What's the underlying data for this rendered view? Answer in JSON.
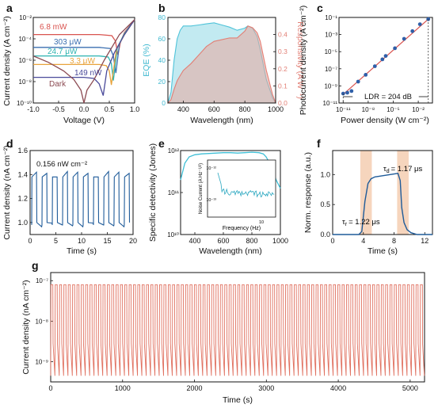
{
  "figure": {
    "panel_labels": [
      "a",
      "b",
      "c",
      "d",
      "e",
      "f",
      "g"
    ]
  },
  "chart_data": [
    {
      "panel": "a",
      "type": "line",
      "xlabel": "Voltage (V)",
      "ylabel": "Current density (A cm⁻²)",
      "xlim": [
        -1.0,
        1.0
      ],
      "ylim_log10": [
        -10,
        -2
      ],
      "yscale": "log",
      "xticks": [
        "-1.0",
        "-0.5",
        "0.0",
        "0.5",
        "1.0"
      ],
      "yticks": [
        "10⁻¹⁰",
        "10⁻⁸",
        "10⁻⁶",
        "10⁻⁴",
        "10⁻²"
      ],
      "series": [
        {
          "name": "6.8 mW",
          "color": "#d9534f",
          "x": [
            -1.0,
            -0.5,
            0.0,
            0.3,
            0.55,
            0.62,
            0.67,
            0.72,
            0.8,
            1.0
          ],
          "y": [
            -3.6,
            -3.6,
            -3.6,
            -3.6,
            -3.7,
            -4.2,
            -5.5,
            -4.3,
            -3.4,
            -2.2
          ]
        },
        {
          "name": "303 μW",
          "color": "#3b6fb0",
          "x": [
            -1.0,
            -0.5,
            0.0,
            0.3,
            0.52,
            0.58,
            0.63,
            0.7,
            0.8,
            1.0
          ],
          "y": [
            -4.8,
            -4.8,
            -4.8,
            -4.8,
            -4.9,
            -5.6,
            -7.2,
            -4.5,
            -3.5,
            -2.2
          ]
        },
        {
          "name": "24.7 μW",
          "color": "#2bb3b0",
          "x": [
            -1.0,
            -0.5,
            0.0,
            0.3,
            0.48,
            0.54,
            0.58,
            0.66,
            0.8,
            1.0
          ],
          "y": [
            -5.6,
            -5.6,
            -5.6,
            -5.6,
            -5.7,
            -6.3,
            -7.9,
            -4.8,
            -3.5,
            -2.2
          ]
        },
        {
          "name": "3.3 μW",
          "color": "#e8a33c",
          "x": [
            -1.0,
            -0.5,
            0.0,
            0.3,
            0.44,
            0.5,
            0.54,
            0.64,
            0.8,
            1.0
          ],
          "y": [
            -6.4,
            -6.4,
            -6.4,
            -6.4,
            -6.5,
            -7.0,
            -8.3,
            -5.0,
            -3.6,
            -2.2
          ]
        },
        {
          "name": "149 nW",
          "color": "#4a4a9a",
          "x": [
            -1.0,
            -0.5,
            0.0,
            0.2,
            0.3,
            0.38,
            0.45,
            0.6,
            0.8,
            1.0
          ],
          "y": [
            -7.6,
            -7.6,
            -7.6,
            -7.7,
            -8.2,
            -9.3,
            -7.0,
            -5.3,
            -3.6,
            -2.2
          ]
        },
        {
          "name": "Dark",
          "color": "#8b4a52",
          "x": [
            -1.0,
            -0.7,
            -0.4,
            -0.2,
            -0.06,
            0.0,
            0.06,
            0.2,
            0.4,
            0.7,
            1.0
          ],
          "y": [
            -5.6,
            -6.2,
            -7.0,
            -7.8,
            -8.8,
            -10.0,
            -8.8,
            -7.8,
            -6.0,
            -3.6,
            -2.2
          ]
        }
      ]
    },
    {
      "panel": "b",
      "type": "area",
      "xlabel": "Wavelength (nm)",
      "ylabel": "EQE (%)",
      "ylabel2": "Responsivity (A W⁻¹)",
      "xlim": [
        300,
        1000
      ],
      "ylim": [
        0,
        80
      ],
      "ylim2": [
        0,
        0.5
      ],
      "xticks": [
        "400",
        "600",
        "800",
        "1000"
      ],
      "yticks": [
        "0",
        "20",
        "40",
        "60",
        "80"
      ],
      "yticks2": [
        "0.0",
        "0.1",
        "0.2",
        "0.3",
        "0.4"
      ],
      "series": [
        {
          "name": "EQE",
          "color": "#4fc3d9",
          "x": [
            300,
            320,
            340,
            360,
            380,
            400,
            450,
            500,
            550,
            600,
            650,
            700,
            750,
            800,
            820,
            850,
            880,
            900,
            940,
            980,
            1000
          ],
          "y": [
            0,
            10,
            40,
            60,
            68,
            72,
            72,
            73,
            74,
            75,
            73,
            71,
            68,
            70,
            72,
            70,
            62,
            50,
            22,
            5,
            0
          ]
        },
        {
          "name": "Responsivity",
          "color": "#e27f75",
          "x": [
            300,
            320,
            340,
            360,
            380,
            400,
            450,
            500,
            550,
            600,
            650,
            700,
            750,
            800,
            820,
            850,
            880,
            900,
            940,
            980,
            1000
          ],
          "y": [
            0,
            0.02,
            0.08,
            0.13,
            0.16,
            0.19,
            0.23,
            0.28,
            0.33,
            0.36,
            0.37,
            0.38,
            0.38,
            0.42,
            0.45,
            0.44,
            0.41,
            0.36,
            0.19,
            0.05,
            0
          ]
        }
      ]
    },
    {
      "panel": "c",
      "type": "scatter",
      "xlabel": "Power density (W cm⁻²)",
      "ylabel": "Photocurrent density (A cm⁻²)",
      "xscale": "log",
      "yscale": "log",
      "xlim_log10": [
        -11.5,
        -0.3
      ],
      "ylim_log10": [
        -11,
        -1
      ],
      "xticks": [
        "10⁻¹¹",
        "10⁻⁸",
        "10⁻⁵",
        "10⁻²"
      ],
      "yticks": [
        "10⁻¹¹",
        "10⁻⁹",
        "10⁻⁷",
        "10⁻⁵",
        "10⁻³",
        "10⁻¹"
      ],
      "annotation": "LDR = 204 dB",
      "fit_color": "#d9534f",
      "point_color": "#2f5fa8",
      "x_log10": [
        -11.0,
        -10.5,
        -10.0,
        -9.2,
        -8.3,
        -7.2,
        -6.3,
        -5.9,
        -4.8,
        -3.7,
        -2.7,
        -1.8,
        -0.8
      ],
      "y_log10": [
        -9.9,
        -9.8,
        -9.6,
        -8.5,
        -7.7,
        -6.7,
        -5.9,
        -5.5,
        -4.6,
        -3.5,
        -2.6,
        -1.8,
        -1.2
      ]
    },
    {
      "panel": "d",
      "type": "line",
      "xlabel": "Time (s)",
      "ylabel": "Current density (nA cm⁻²)",
      "annotation": "0.156 nW cm⁻²",
      "xlim": [
        0,
        20
      ],
      "ylim": [
        0.9,
        1.6
      ],
      "xticks": [
        "0",
        "5",
        "10",
        "15",
        "20"
      ],
      "yticks": [
        "1.0",
        "1.2",
        "1.4",
        "1.6"
      ],
      "color": "#1f5b99",
      "periods": 10,
      "high": 1.4,
      "low": 0.98
    },
    {
      "panel": "e",
      "type": "line",
      "xlabel": "Wavelength (nm)",
      "ylabel": "Specific detectivity (Jones)",
      "xlim": [
        300,
        1000
      ],
      "ylim_log10": [
        10,
        12
      ],
      "yscale": "log",
      "xticks": [
        "400",
        "600",
        "800",
        "1000"
      ],
      "yticks": [
        "10¹⁰",
        "10¹¹",
        "10¹²"
      ],
      "color": "#3fbfd6",
      "x": [
        300,
        330,
        360,
        400,
        450,
        500,
        550,
        600,
        650,
        700,
        750,
        800,
        850,
        880,
        900,
        940,
        970,
        1000
      ],
      "y_log10": [
        11.3,
        11.7,
        11.85,
        11.9,
        11.92,
        11.93,
        11.94,
        11.95,
        11.95,
        11.94,
        11.95,
        11.96,
        11.95,
        11.92,
        11.85,
        11.6,
        11.3,
        11.1
      ],
      "inset": {
        "xlabel": "Frequency (Hz)",
        "ylabel": "Noise Current (A Hz⁻¹/²)",
        "xtick": "10",
        "yticks": [
          "10⁻¹³",
          "10⁻¹²"
        ],
        "color": "#2aa7c0"
      }
    },
    {
      "panel": "f",
      "type": "line",
      "xlabel": "Time (s)",
      "ylabel": "Norm. response (a.u.)",
      "xlim": [
        0,
        13
      ],
      "ylim": [
        0,
        1.4
      ],
      "xticks": [
        "0",
        "4",
        "8",
        "12"
      ],
      "yticks": [
        "0.0",
        "0.5",
        "1.0"
      ],
      "rise_label": "τr = 1.22 μs",
      "decay_label": "τd = 1.17 μs",
      "rise_sub": "r",
      "decay_sub": "d",
      "tau": "τ",
      "rise_value": "= 1.22 μs",
      "decay_value": "= 1.17 μs",
      "color": "#1f5b99",
      "highlight": "#f6d5bd",
      "x": [
        0,
        3.4,
        3.8,
        4.2,
        4.6,
        5.0,
        5.5,
        6.5,
        7.5,
        8.5,
        8.8,
        9.0,
        9.3,
        9.7,
        10.2,
        11,
        13
      ],
      "y": [
        0,
        0,
        0.05,
        0.55,
        0.85,
        0.93,
        0.96,
        0.98,
        1.0,
        1.02,
        0.9,
        0.45,
        0.2,
        0.08,
        0.03,
        0,
        0
      ]
    },
    {
      "panel": "g",
      "type": "line",
      "xlabel": "Time (s)",
      "ylabel": "Current density (nA cm⁻²)",
      "xlim": [
        0,
        5200
      ],
      "ylim_log10": [
        -9.5,
        -6.8
      ],
      "yscale": "log",
      "xticks": [
        "0",
        "1000",
        "2000",
        "3000",
        "4000",
        "5000"
      ],
      "yticks": [
        "10⁻⁹",
        "10⁻⁸",
        "10⁻⁷"
      ],
      "color": "#e0705f",
      "cycles": 86,
      "high_log10": -7.1,
      "low_log10": -9.35
    }
  ]
}
